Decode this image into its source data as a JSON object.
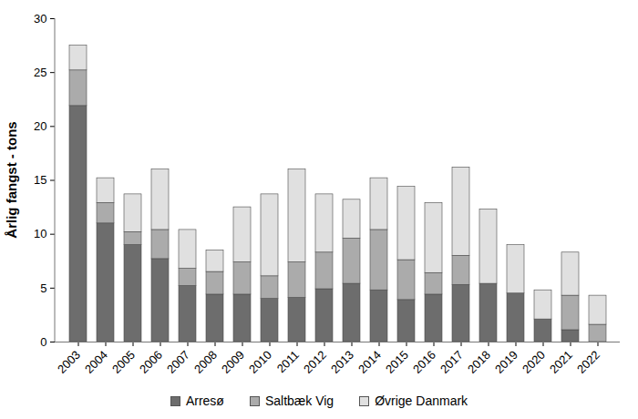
{
  "chart_data": {
    "type": "bar",
    "stacked": true,
    "y_label": "Årlig fangst - tons",
    "categories": [
      "2003",
      "2004",
      "2005",
      "2006",
      "2007",
      "2008",
      "2009",
      "2010",
      "2011",
      "2012",
      "2013",
      "2014",
      "2015",
      "2016",
      "2017",
      "2018",
      "2019",
      "2020",
      "2021",
      "2022"
    ],
    "series": [
      {
        "name": "Arresø",
        "color": "#6d6d6d",
        "values": [
          21.9,
          11.0,
          9.0,
          7.7,
          5.2,
          4.4,
          4.4,
          4.0,
          4.1,
          4.9,
          5.4,
          4.8,
          3.9,
          4.4,
          5.3,
          5.4,
          4.5,
          2.1,
          1.1,
          0
        ]
      },
      {
        "name": "Saltbæk Vig",
        "color": "#ababab",
        "values": [
          3.3,
          1.9,
          1.2,
          2.7,
          1.6,
          2.1,
          3.0,
          2.1,
          3.3,
          3.4,
          4.2,
          5.6,
          3.7,
          2.0,
          2.7,
          0,
          0,
          0,
          3.2,
          1.6
        ]
      },
      {
        "name": "Øvrige Danmark",
        "color": "#e0e0e0",
        "values": [
          2.3,
          2.3,
          3.5,
          5.6,
          3.6,
          2.0,
          5.1,
          7.6,
          8.6,
          5.4,
          3.6,
          4.8,
          6.8,
          6.5,
          8.2,
          6.9,
          4.5,
          2.7,
          4.0,
          2.7
        ]
      }
    ],
    "ylim": [
      0,
      30
    ],
    "yticks": [
      0,
      5,
      10,
      15,
      20,
      25,
      30
    ],
    "grid": false,
    "legend": "bottom"
  }
}
